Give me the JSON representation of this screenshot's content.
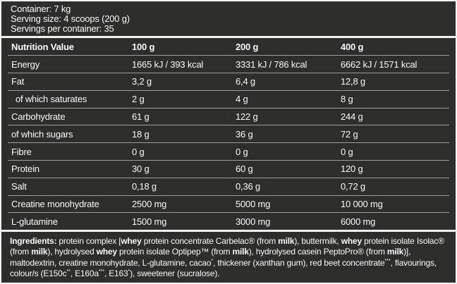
{
  "colors": {
    "background": "#2d2d2c",
    "text": "#fafafa",
    "outer_border": "#f2f2f2",
    "section_divider": "#f2f2f2",
    "row_separator": "#9c9c9c"
  },
  "header_info": {
    "lines": [
      "Container: 7 kg",
      "Serving size: 4 scoops (200 g)",
      "Servings per container: 35"
    ]
  },
  "table": {
    "columns": [
      "Nutrition Value",
      "100 g",
      "200 g",
      "400 g"
    ],
    "rows": [
      {
        "label": "Energy",
        "indent": false,
        "values": [
          "1665 kJ / 393 kcal",
          "3331 kJ / 786 kcal",
          "6662 kJ / 1571 kcal"
        ]
      },
      {
        "label": "Fat",
        "indent": false,
        "values": [
          "3,2 g",
          "6,4 g",
          "12,8 g"
        ]
      },
      {
        "label": "of which saturates",
        "indent": true,
        "values": [
          "2 g",
          "4 g",
          "8 g"
        ]
      },
      {
        "label": "Carbohydrate",
        "indent": false,
        "values": [
          "61 g",
          "122 g",
          "244 g"
        ]
      },
      {
        "label": "of which sugars",
        "indent": false,
        "values": [
          "18 g",
          "36 g",
          "72 g"
        ]
      },
      {
        "label": "Fibre",
        "indent": false,
        "values": [
          "0 g",
          "0 g",
          "0 g"
        ]
      },
      {
        "label": "Protein",
        "indent": false,
        "values": [
          "30 g",
          "60 g",
          "120 g"
        ]
      },
      {
        "label": "Salt",
        "indent": false,
        "values": [
          "0,18 g",
          "0,36 g",
          "0,72 g"
        ]
      },
      {
        "label": "Creatine monohydrate",
        "indent": false,
        "values": [
          "2500 mg",
          "5000 mg",
          "10 000 mg"
        ]
      },
      {
        "label": "L-glutamine",
        "indent": false,
        "values": [
          "1500 mg",
          "3000 mg",
          "6000 mg"
        ]
      }
    ]
  },
  "ingredients": {
    "segments": [
      {
        "t": "Ingredients: ",
        "b": true
      },
      {
        "t": "protein complex [",
        "b": false
      },
      {
        "t": "whey",
        "b": true
      },
      {
        "t": " protein concentrate Carbelac® (from ",
        "b": false
      },
      {
        "t": "milk",
        "b": true
      },
      {
        "t": "), buttermilk, ",
        "b": false
      },
      {
        "t": "whey",
        "b": true
      },
      {
        "t": " protein isolate Isolac® (from ",
        "b": false
      },
      {
        "t": "milk",
        "b": true
      },
      {
        "t": "), hydrolysed ",
        "b": false
      },
      {
        "t": "whey",
        "b": true
      },
      {
        "t": " protein isolate Optipep™ (from ",
        "b": false
      },
      {
        "t": "milk",
        "b": true
      },
      {
        "t": "), hydrolysed casein PeptoPro® (from ",
        "b": false
      },
      {
        "t": "milk",
        "b": true
      },
      {
        "t": ")], maltodextrin, creatine monohydrate, L-glutamine, cacao",
        "b": false
      },
      {
        "t": "*",
        "sup": true
      },
      {
        "t": ", thickener (xanthan gum), red beet concentrate",
        "b": false
      },
      {
        "t": "***",
        "sup": true
      },
      {
        "t": ", flavourings, colour/s (E150c",
        "b": false
      },
      {
        "t": "**",
        "sup": true
      },
      {
        "t": ", E160a",
        "b": false
      },
      {
        "t": "***",
        "sup": true
      },
      {
        "t": ", E163",
        "b": false
      },
      {
        "t": "*",
        "sup": true
      },
      {
        "t": "), sweetener (sucralose).",
        "b": false
      }
    ]
  }
}
